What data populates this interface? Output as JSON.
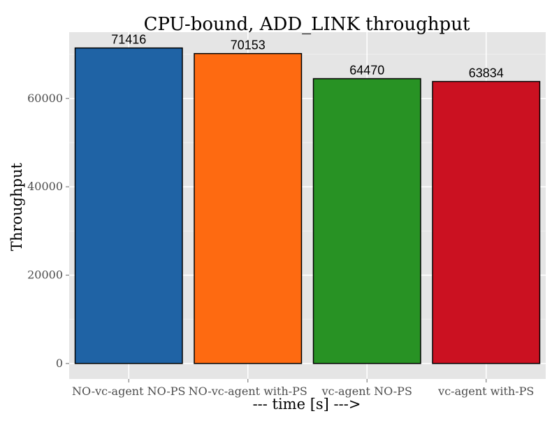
{
  "chart_data": {
    "type": "bar",
    "title": "CPU-bound, ADD_LINK throughput",
    "xlabel": "--- time [s] --->",
    "ylabel": "Throughput",
    "categories": [
      "NO-vc-agent NO-PS",
      "NO-vc-agent with-PS",
      "vc-agent NO-PS",
      "vc-agent with-PS"
    ],
    "values": [
      71416,
      70153,
      64470,
      63834
    ],
    "data_labels": [
      "71416",
      "70153",
      "64470",
      "63834"
    ],
    "bar_colors": [
      "#1f63a5",
      "#fe6a11",
      "#289224",
      "#cb1121"
    ],
    "ylim": [
      -3500,
      75000
    ],
    "yticks": [
      0,
      20000,
      40000,
      60000
    ],
    "ytick_labels": [
      "0",
      "20000",
      "40000",
      "60000"
    ],
    "grid": true,
    "legend": "none",
    "colors": {
      "panel_background": "#e5e5e5",
      "grid_major": "#ffffff",
      "grid_minor": "#f2f2f2",
      "bar_outline": "#000000"
    }
  }
}
